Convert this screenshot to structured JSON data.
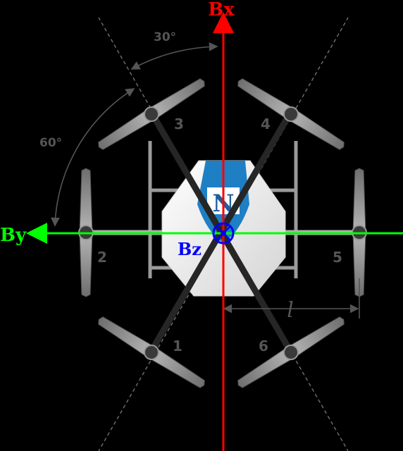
{
  "axes": {
    "bx_label": "Bx",
    "by_label": "By",
    "bz_label": "Bz",
    "bx_color": "#ff0000",
    "by_color": "#00ff00",
    "bz_color": "#0000ff"
  },
  "angles": {
    "top": "30°",
    "side": "60°"
  },
  "dimension_label": "l",
  "motors": [
    {
      "id": "1",
      "label": "1"
    },
    {
      "id": "2",
      "label": "2"
    },
    {
      "id": "3",
      "label": "3"
    },
    {
      "id": "4",
      "label": "4"
    },
    {
      "id": "5",
      "label": "5"
    },
    {
      "id": "6",
      "label": "6"
    }
  ],
  "logo_text": "N",
  "colors": {
    "background": "#000000",
    "arm": "#2a2a2a",
    "propeller": "#8a8a8a",
    "body": "#f2f2f2",
    "logo": "#1f7fc4",
    "annotation": "#555555"
  }
}
